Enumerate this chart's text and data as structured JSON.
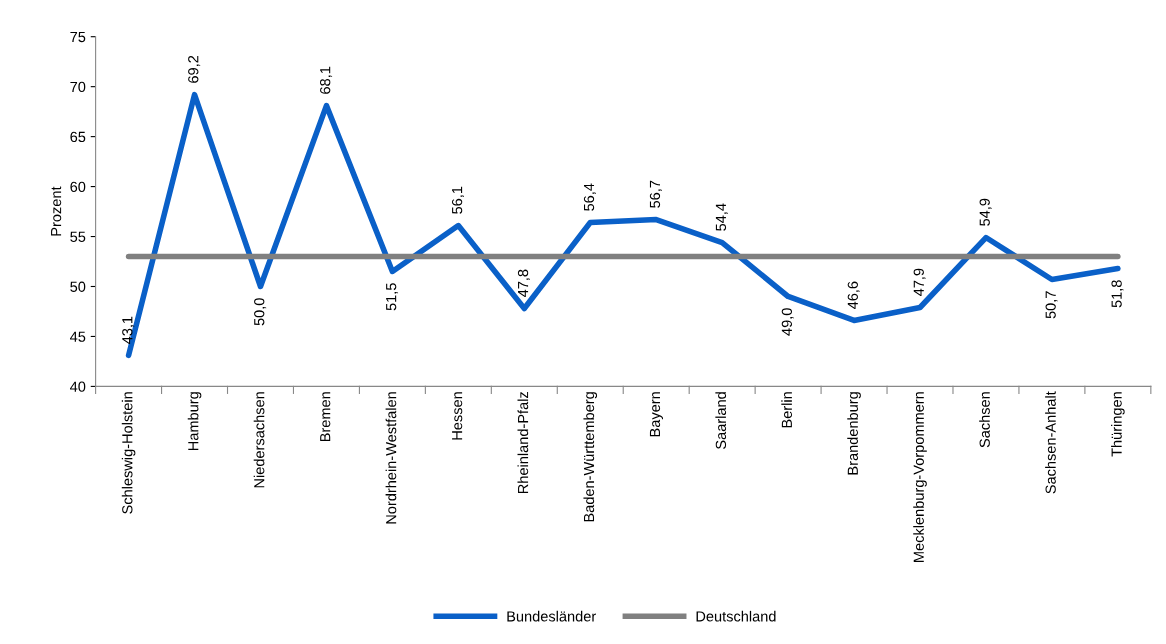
{
  "chart_data": {
    "type": "line",
    "ylabel": "Prozent",
    "categories": [
      "Schleswig-Holstein",
      "Hamburg",
      "Niedersachsen",
      "Bremen",
      "Nordrhein-Westfalen",
      "Hessen",
      "Rheinland-Pfalz",
      "Baden-Württemberg",
      "Bayern",
      "Saarland",
      "Berlin",
      "Brandenburg",
      "Mecklenburg-Vorpommern",
      "Sachsen",
      "Sachsen-Anhalt",
      "Thüringen"
    ],
    "series": [
      {
        "name": "Bundesländer",
        "color": "#0a60c8",
        "values": [
          43.1,
          69.2,
          50.0,
          68.1,
          51.5,
          56.1,
          47.8,
          56.4,
          56.7,
          54.4,
          49.0,
          46.6,
          47.9,
          54.9,
          50.7,
          51.8
        ],
        "value_labels": [
          "43,1",
          "69,2",
          "50,0",
          "68,1",
          "51,5",
          "56,1",
          "47,8",
          "56,4",
          "56,7",
          "54,4",
          "49,0",
          "46,6",
          "47,9",
          "54,9",
          "50,7",
          "51,8"
        ]
      },
      {
        "name": "Deutschland",
        "color": "#808080",
        "values": [
          53.0,
          53.0,
          53.0,
          53.0,
          53.0,
          53.0,
          53.0,
          53.0,
          53.0,
          53.0,
          53.0,
          53.0,
          53.0,
          53.0,
          53.0,
          53.0
        ]
      }
    ],
    "ylim": [
      40,
      75
    ],
    "yticks": [
      40,
      45,
      50,
      55,
      60,
      65,
      70,
      75
    ],
    "grid": false,
    "legend": "bottom",
    "marker": "none",
    "line_style": "solid"
  }
}
